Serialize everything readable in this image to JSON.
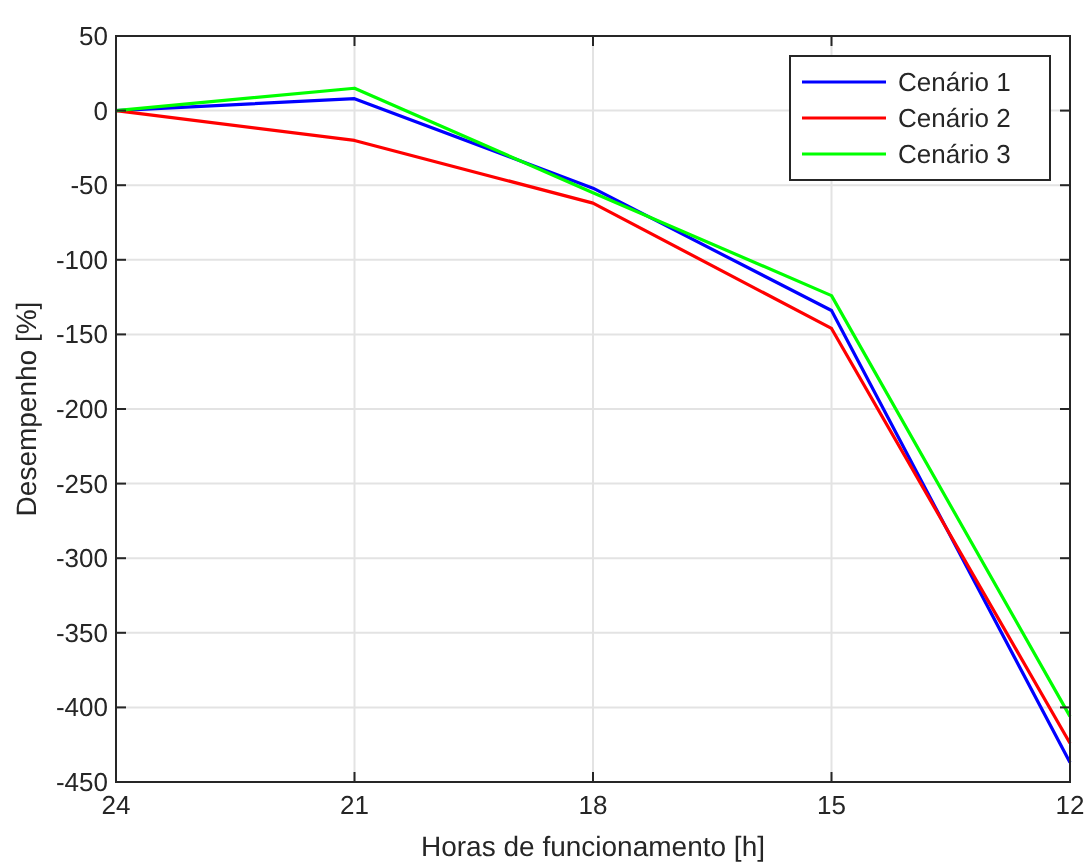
{
  "chart_data": {
    "type": "line",
    "xlabel": "Horas de funcionamento [h]",
    "ylabel": "Desempenho [%]",
    "x": [
      24,
      21,
      18,
      15,
      12
    ],
    "xlim": [
      24,
      12
    ],
    "xticks": [
      24,
      21,
      18,
      15,
      12
    ],
    "ylim": [
      -450,
      50
    ],
    "yticks": [
      -450,
      -400,
      -350,
      -300,
      -250,
      -200,
      -150,
      -100,
      -50,
      0,
      50
    ],
    "grid": true,
    "legend": "top right",
    "marker": "none",
    "line_style": "solid",
    "series": [
      {
        "name": "Cenário 1",
        "color": "#0000ff",
        "values": [
          0,
          8,
          -52,
          -134,
          -437
        ]
      },
      {
        "name": "Cenário 2",
        "color": "#ff0000",
        "values": [
          0,
          -20,
          -62,
          -146,
          -424
        ]
      },
      {
        "name": "Cenário 3",
        "color": "#00ff00",
        "values": [
          0,
          15,
          -55,
          -124,
          -406
        ]
      }
    ]
  }
}
